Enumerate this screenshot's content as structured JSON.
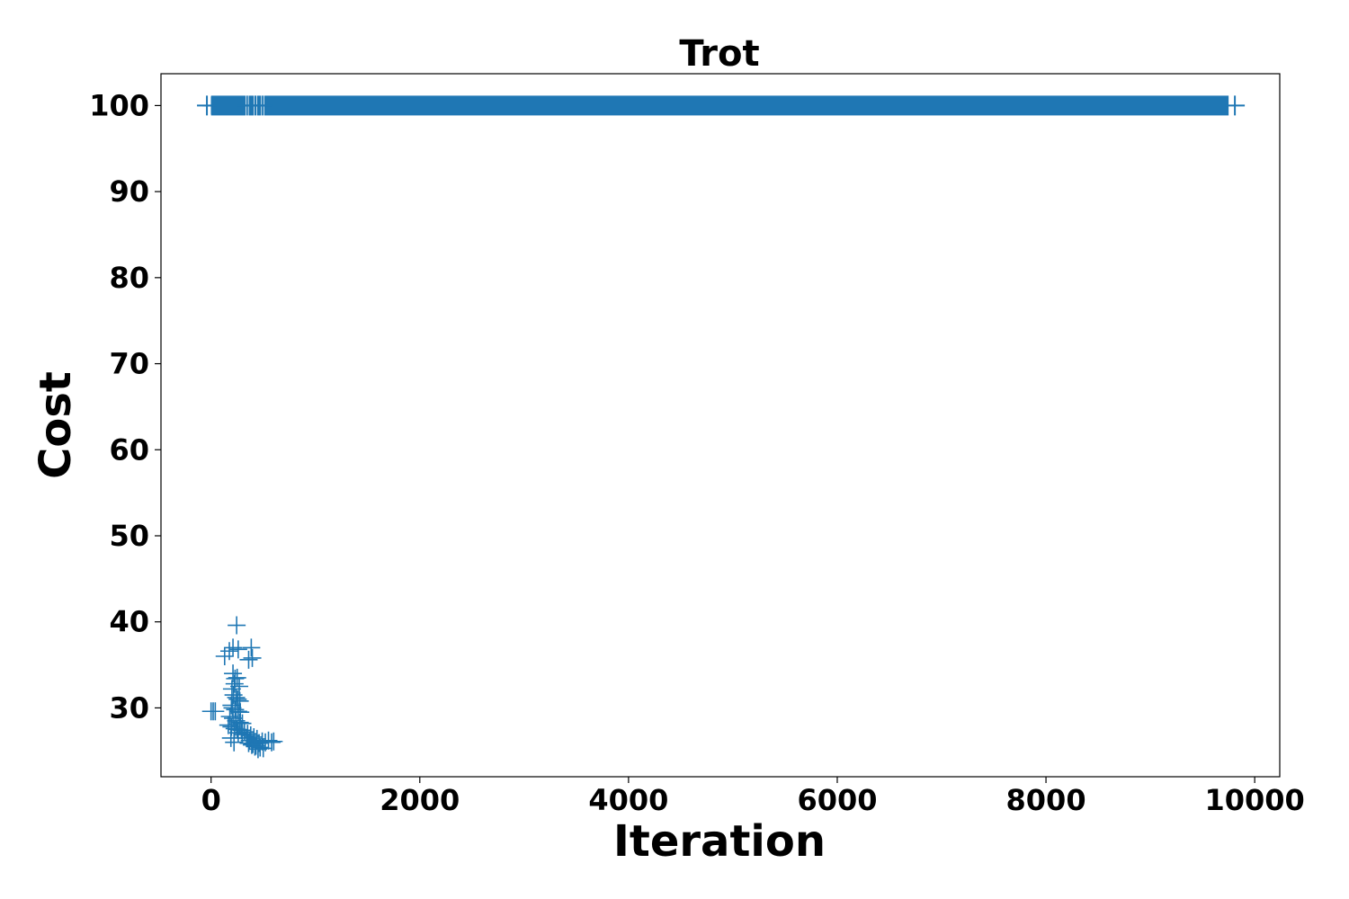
{
  "chart_data": {
    "type": "scatter",
    "title": "Trot",
    "xlabel": "Iteration",
    "ylabel": "Cost",
    "xlim": [
      -480,
      10240
    ],
    "ylim": [
      22,
      103.7
    ],
    "xticks": [
      0,
      2000,
      4000,
      6000,
      8000,
      10000
    ],
    "yticks": [
      30,
      40,
      50,
      60,
      70,
      80,
      90,
      100
    ],
    "grid": false,
    "legend": "none",
    "marker": "plus",
    "color": "#1f77b4",
    "series": [
      {
        "points_sample": [
          [
            0,
            29.6
          ],
          [
            20,
            29.6
          ],
          [
            40,
            29.6
          ],
          [
            5,
            100
          ],
          [
            30,
            100
          ],
          [
            130,
            36.0
          ],
          [
            175,
            36.6
          ],
          [
            210,
            37.0
          ],
          [
            245,
            39.6
          ],
          [
            260,
            36.8
          ],
          [
            385,
            37.0
          ],
          [
            395,
            35.8
          ],
          [
            360,
            35.6
          ],
          [
            210,
            34.0
          ],
          [
            230,
            33.4
          ],
          [
            250,
            33.5
          ],
          [
            225,
            32.8
          ],
          [
            270,
            32.5
          ],
          [
            200,
            32.2
          ],
          [
            215,
            31.5
          ],
          [
            240,
            31.2
          ],
          [
            255,
            31.0
          ],
          [
            275,
            30.8
          ],
          [
            195,
            30.3
          ],
          [
            205,
            30.0
          ],
          [
            230,
            29.8
          ],
          [
            260,
            29.6
          ],
          [
            280,
            29.5
          ],
          [
            180,
            29.0
          ],
          [
            210,
            28.8
          ],
          [
            240,
            28.5
          ],
          [
            275,
            28.3
          ],
          [
            300,
            28.2
          ],
          [
            165,
            28.0
          ],
          [
            195,
            27.8
          ],
          [
            225,
            27.6
          ],
          [
            250,
            27.5
          ],
          [
            290,
            27.4
          ],
          [
            320,
            27.2
          ],
          [
            350,
            27.0
          ],
          [
            380,
            26.8
          ],
          [
            410,
            26.6
          ],
          [
            440,
            26.4
          ],
          [
            190,
            26.5
          ],
          [
            220,
            26.0
          ],
          [
            260,
            27.1
          ],
          [
            300,
            26.9
          ],
          [
            340,
            26.5
          ],
          [
            370,
            26.2
          ],
          [
            400,
            25.8
          ],
          [
            430,
            25.6
          ],
          [
            460,
            25.9
          ],
          [
            490,
            26.1
          ],
          [
            520,
            26.0
          ],
          [
            550,
            26.2
          ],
          [
            580,
            26.0
          ],
          [
            600,
            26.1
          ],
          [
            470,
            25.4
          ],
          [
            500,
            25.3
          ],
          [
            450,
            25.2
          ],
          [
            420,
            25.5
          ],
          [
            390,
            25.7
          ],
          [
            360,
            25.9
          ]
        ]
      }
    ],
    "band": {
      "y": 100,
      "x_start": 0,
      "x_end": 9750,
      "gaps": [
        [
          330,
          360
        ],
        [
          410,
          440
        ],
        [
          480,
          510
        ]
      ]
    }
  }
}
